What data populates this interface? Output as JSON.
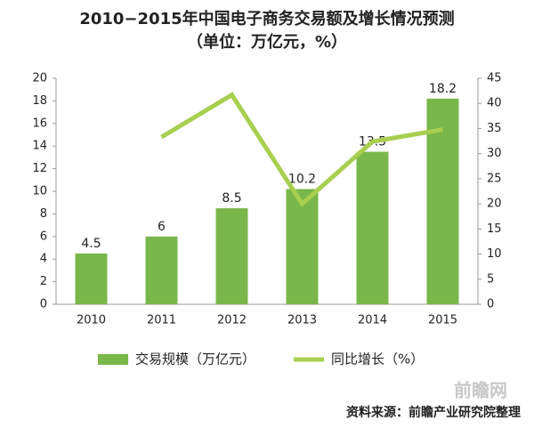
{
  "chart_data": {
    "type": "bar-line",
    "title": "2010−2015年中国电子商务交易额及增长情况预测",
    "subtitle": "（单位：万亿元，%）",
    "categories": [
      "2010",
      "2011",
      "2012",
      "2013",
      "2014",
      "2015"
    ],
    "series": [
      {
        "name": "交易规模（万亿元）",
        "type": "bar",
        "color": "#79b74a",
        "values": [
          4.5,
          6,
          8.5,
          10.2,
          13.5,
          18.2
        ]
      },
      {
        "name": "同比增长（%）",
        "type": "line",
        "axis": "y2",
        "color": "#a8cf4f",
        "values": [
          null,
          33.3,
          41.7,
          20,
          32.4,
          34.8
        ]
      }
    ],
    "ylim": [
      0,
      20
    ],
    "yticks": [
      0,
      2,
      4,
      6,
      8,
      10,
      12,
      14,
      16,
      18,
      20
    ],
    "y2lim": [
      0,
      45
    ],
    "y2ticks": [
      0,
      5,
      10,
      15,
      20,
      25,
      30,
      35,
      40,
      45
    ],
    "source": "资料来源：前瞻产业研究院整理",
    "watermark": "前瞻网"
  }
}
